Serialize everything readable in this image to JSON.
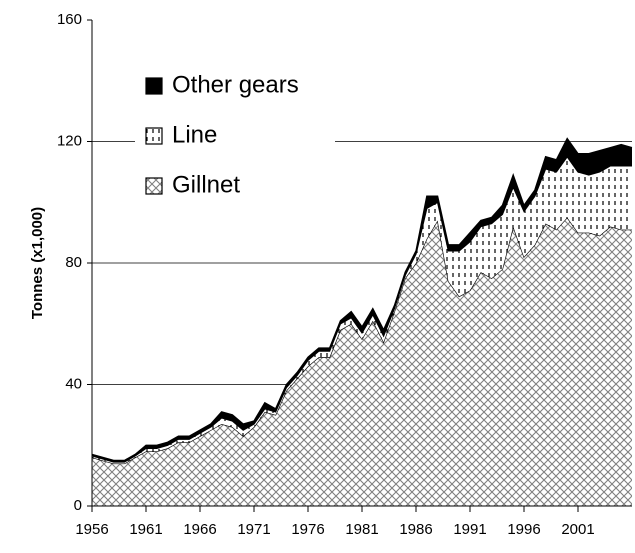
{
  "chart_data": {
    "type": "stacked-area",
    "y_label": "Tonnes (x1,000)",
    "x": [
      1956,
      1957,
      1958,
      1959,
      1960,
      1961,
      1962,
      1963,
      1964,
      1965,
      1966,
      1967,
      1968,
      1969,
      1970,
      1971,
      1972,
      1973,
      1974,
      1975,
      1976,
      1977,
      1978,
      1979,
      1980,
      1981,
      1982,
      1983,
      1984,
      1985,
      1986,
      1987,
      1988,
      1989,
      1990,
      1991,
      1992,
      1993,
      1994,
      1995,
      1996,
      1997,
      1998,
      1999,
      2000,
      2001,
      2002,
      2003,
      2004,
      2005,
      2006
    ],
    "series": [
      {
        "name": "Gillnet",
        "color": "#808080",
        "pattern": "crosshatch",
        "values": [
          16,
          15,
          14,
          14,
          16,
          18,
          18,
          19,
          21,
          21,
          23,
          25,
          27,
          26,
          23,
          26,
          31,
          30,
          38,
          42,
          46,
          49,
          49,
          58,
          60,
          55,
          61,
          54,
          64,
          75,
          80,
          88,
          94,
          74,
          69,
          71,
          77,
          75,
          78,
          92,
          82,
          86,
          93,
          91,
          95,
          90,
          90,
          89,
          92,
          91,
          91
        ]
      },
      {
        "name": "Line",
        "color": "#000000",
        "pattern": "vertical-dash",
        "values": [
          0.5,
          0.5,
          0.5,
          0.5,
          0.5,
          1,
          1,
          1,
          1,
          1,
          1,
          1,
          2,
          2,
          2,
          1,
          1,
          1,
          1,
          1,
          2,
          2,
          2,
          2,
          2,
          2,
          2,
          2,
          1,
          1,
          3,
          10,
          6,
          10,
          15,
          16,
          15,
          18,
          18,
          13,
          15,
          16,
          18,
          19,
          20,
          20,
          19,
          21,
          20,
          21,
          21
        ]
      },
      {
        "name": "Other gears",
        "color": "#000000",
        "pattern": "solid",
        "values": [
          0.5,
          0.5,
          0.5,
          0.5,
          0.5,
          1,
          1,
          1,
          1,
          1,
          1,
          1,
          2,
          2,
          2,
          1,
          2,
          1,
          1,
          1,
          1,
          1,
          1,
          1,
          2,
          2,
          2,
          2,
          1,
          1,
          1,
          4,
          2,
          2,
          2,
          3,
          2,
          2,
          3,
          4,
          2,
          2,
          4,
          4,
          6,
          6,
          7,
          7,
          6,
          7,
          6
        ]
      }
    ],
    "xlim": [
      1956,
      2006
    ],
    "xticks": [
      1956,
      1961,
      1966,
      1971,
      1976,
      1981,
      1986,
      1991,
      1996,
      2001
    ],
    "ylim": [
      0,
      160
    ],
    "yticks": [
      0,
      40,
      80,
      120,
      160
    ],
    "grid": true,
    "legend": "top-left"
  }
}
